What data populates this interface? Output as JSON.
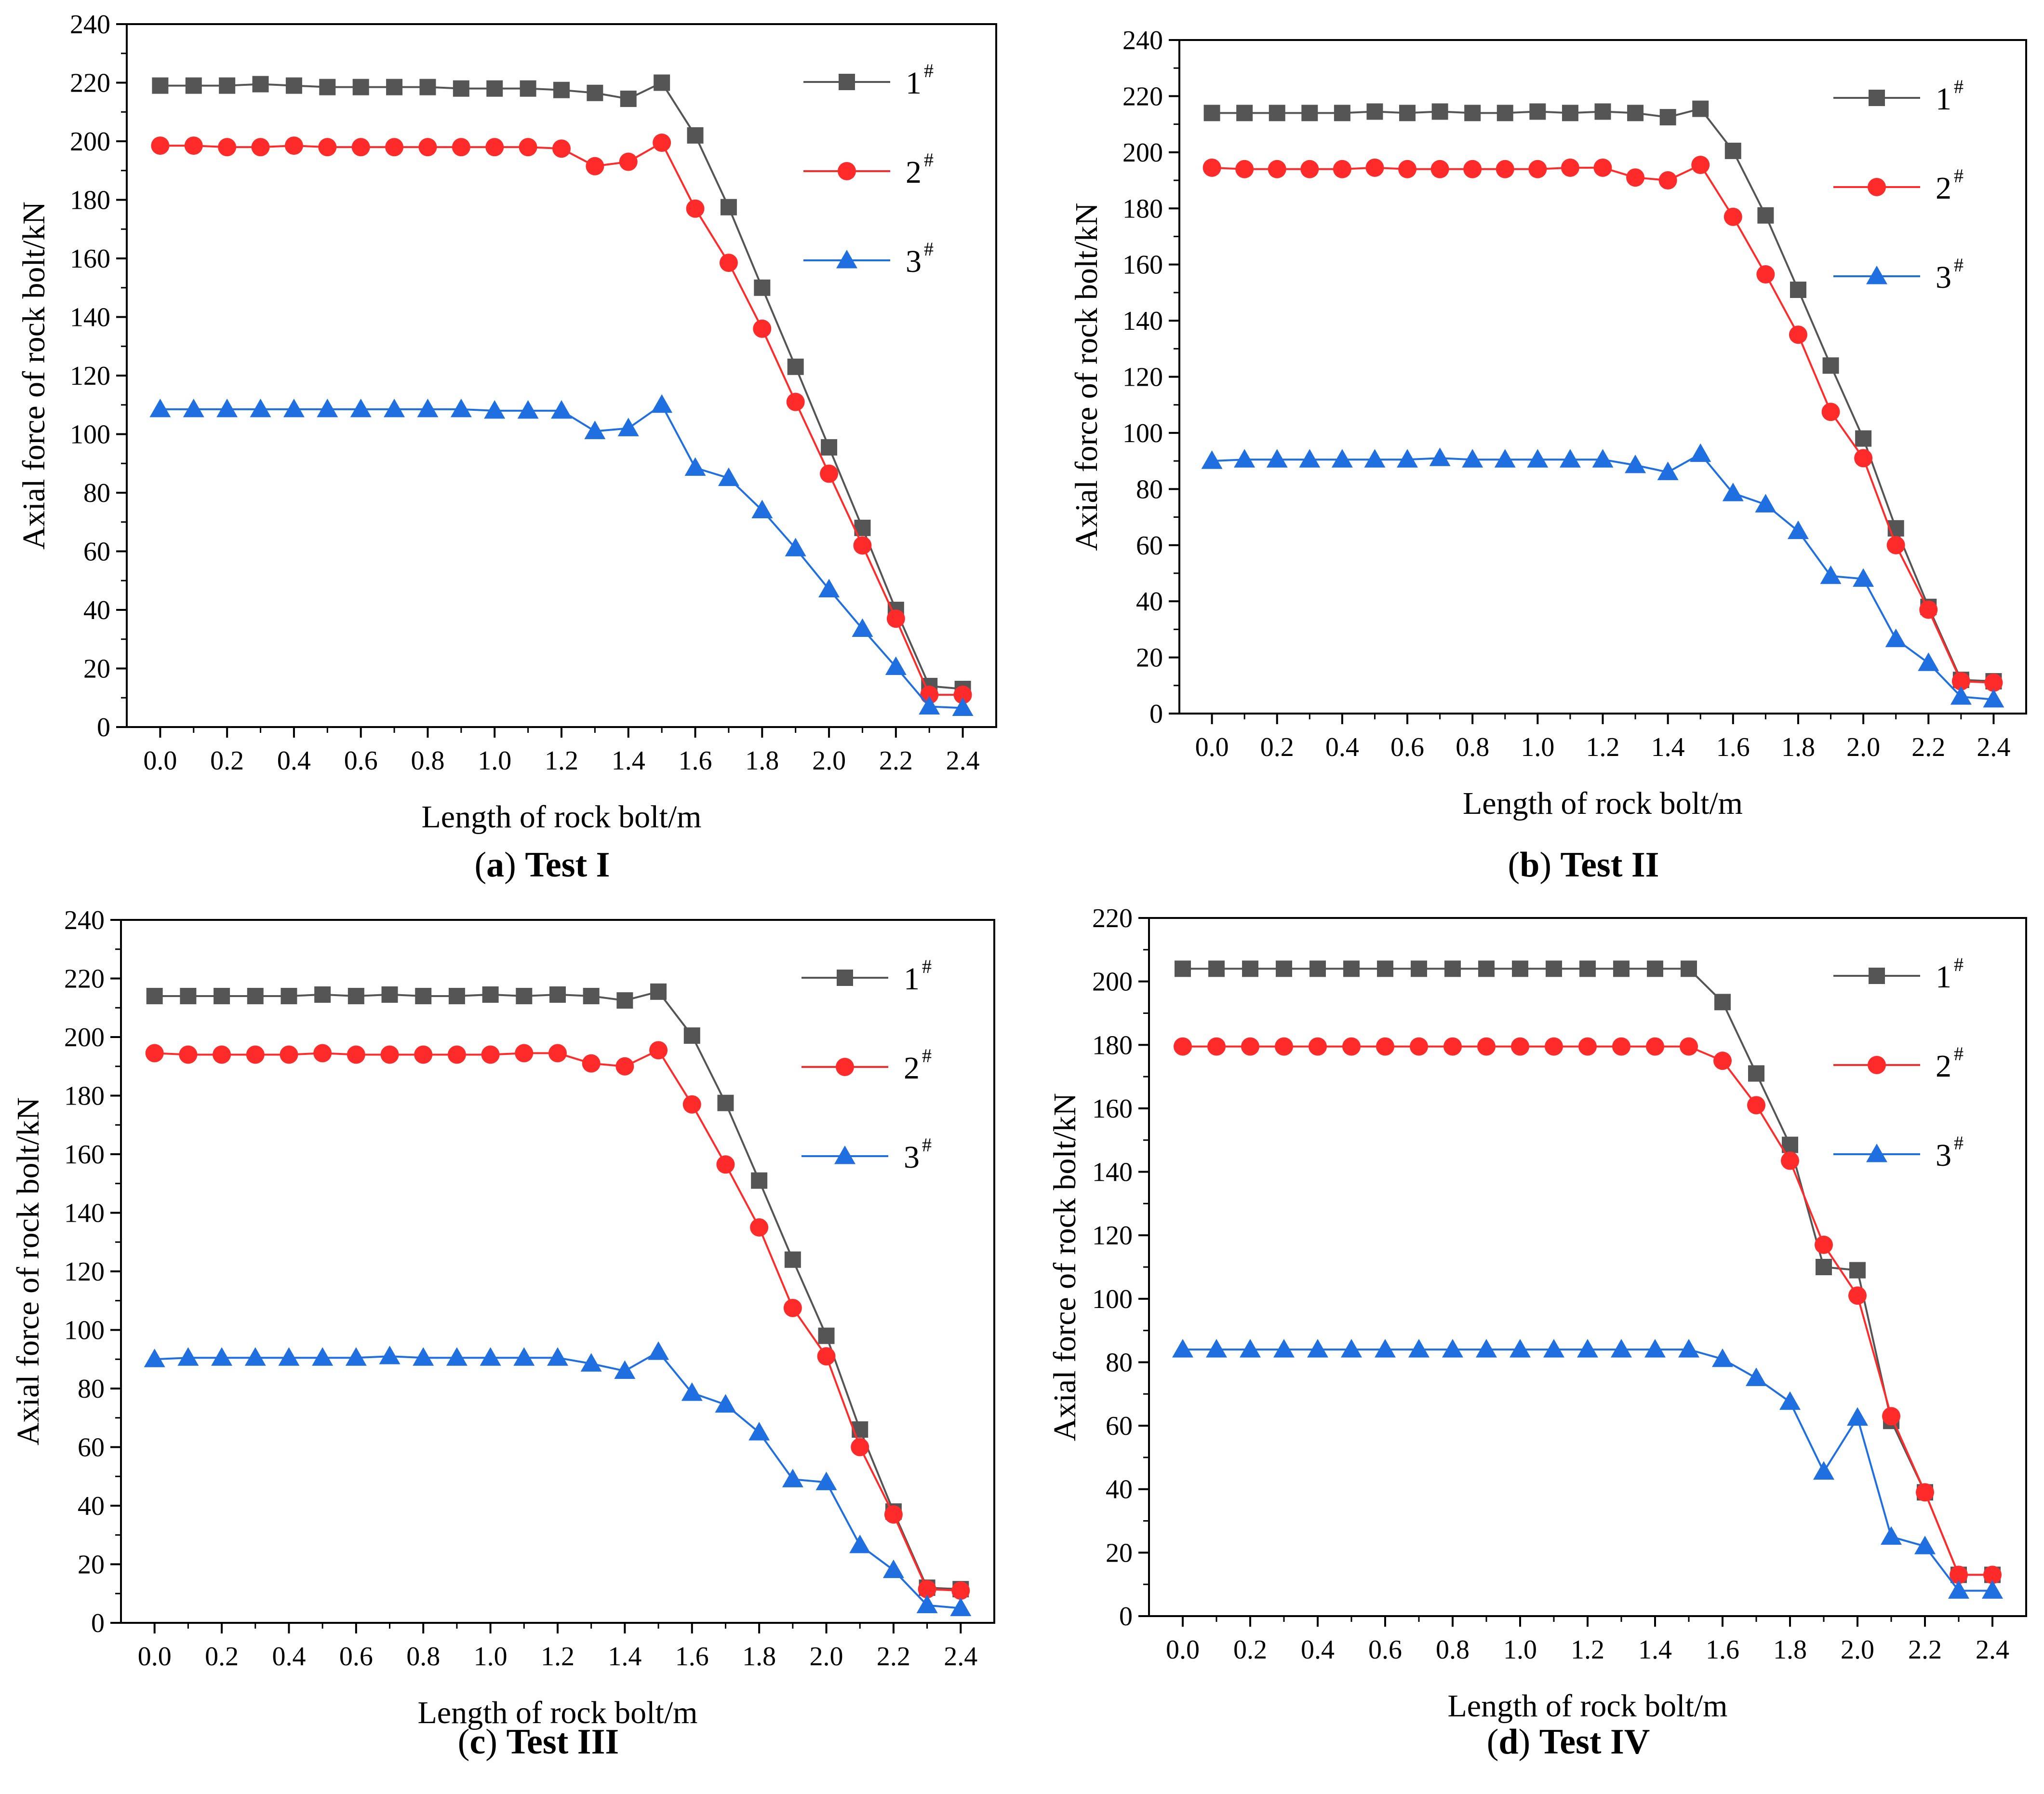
{
  "chart_data": [
    {
      "type": "line",
      "panel_letter": "a",
      "caption_title": "Test I",
      "xlabel": "Length of rock bolt/m",
      "ylabel": "Axial force of rock bolt/kN",
      "xlim": [
        -0.1,
        2.5
      ],
      "ylim": [
        0,
        240
      ],
      "xticks": [
        "0.0",
        "0.2",
        "0.4",
        "0.6",
        "0.8",
        "1.0",
        "1.2",
        "1.4",
        "1.6",
        "1.8",
        "2.0",
        "2.2",
        "2.4"
      ],
      "yticks": [
        "0",
        "20",
        "40",
        "60",
        "80",
        "100",
        "120",
        "140",
        "160",
        "180",
        "200",
        "220",
        "240"
      ],
      "legend_position": "top-right",
      "x": [
        0.0,
        0.1,
        0.2,
        0.3,
        0.4,
        0.5,
        0.6,
        0.7,
        0.8,
        0.9,
        1.0,
        1.1,
        1.2,
        1.3,
        1.4,
        1.5,
        1.6,
        1.7,
        1.8,
        1.9,
        2.0,
        2.1,
        2.2,
        2.3,
        2.4
      ],
      "series": [
        {
          "name": "1",
          "sup": "#",
          "color": "#555555",
          "marker": "square",
          "values": [
            219,
            219,
            219,
            219.5,
            219,
            218.5,
            218.5,
            218.5,
            218.5,
            218,
            218,
            218,
            217.5,
            216.5,
            214.5,
            220,
            202,
            177.5,
            150,
            123,
            95.5,
            68,
            40,
            14,
            13
          ]
        },
        {
          "name": "2",
          "sup": "#",
          "color": "#ff2a2a",
          "marker": "circle",
          "values": [
            198.5,
            198.5,
            198,
            198,
            198.5,
            198,
            198,
            198,
            198,
            198,
            198,
            198,
            197.5,
            191.5,
            193,
            199.5,
            177,
            158.5,
            136,
            111,
            86.5,
            62,
            37,
            11,
            11
          ]
        },
        {
          "name": "3",
          "sup": "#",
          "color": "#1f6fe0",
          "marker": "triangle",
          "values": [
            108.5,
            108.5,
            108.5,
            108.5,
            108.5,
            108.5,
            108.5,
            108.5,
            108.5,
            108.5,
            108,
            108,
            108,
            101,
            102,
            110,
            88.5,
            85,
            74,
            61,
            47,
            33.5,
            20.5,
            7,
            6.5
          ]
        }
      ]
    },
    {
      "type": "line",
      "panel_letter": "b",
      "caption_title": "Test II",
      "xlabel": "Length of rock bolt/m",
      "ylabel": "Axial force of rock bolt/kN",
      "xlim": [
        -0.1,
        2.5
      ],
      "ylim": [
        0,
        240
      ],
      "xticks": [
        "0.0",
        "0.2",
        "0.4",
        "0.6",
        "0.8",
        "1.0",
        "1.2",
        "1.4",
        "1.6",
        "1.8",
        "2.0",
        "2.2",
        "2.4"
      ],
      "yticks": [
        "0",
        "20",
        "40",
        "60",
        "80",
        "100",
        "120",
        "140",
        "160",
        "180",
        "200",
        "220",
        "240"
      ],
      "legend_position": "top-right",
      "x": [
        0.0,
        0.1,
        0.2,
        0.3,
        0.4,
        0.5,
        0.6,
        0.7,
        0.8,
        0.9,
        1.0,
        1.1,
        1.2,
        1.3,
        1.4,
        1.5,
        1.6,
        1.7,
        1.8,
        1.9,
        2.0,
        2.1,
        2.2,
        2.3,
        2.4
      ],
      "series": [
        {
          "name": "1",
          "sup": "#",
          "color": "#555555",
          "marker": "square",
          "values": [
            214,
            214,
            214,
            214,
            214,
            214.5,
            214,
            214.5,
            214,
            214,
            214.5,
            214,
            214.5,
            214,
            212.5,
            215.5,
            200.5,
            177.5,
            151,
            124,
            98,
            66,
            38,
            12,
            11.5
          ]
        },
        {
          "name": "2",
          "sup": "#",
          "color": "#ff2a2a",
          "marker": "circle",
          "values": [
            194.5,
            194,
            194,
            194,
            194,
            194.5,
            194,
            194,
            194,
            194,
            194,
            194.5,
            194.5,
            191,
            190,
            195.5,
            177,
            156.5,
            135,
            107.5,
            91,
            60,
            37,
            11.5,
            11
          ]
        },
        {
          "name": "3",
          "sup": "#",
          "color": "#1f6fe0",
          "marker": "triangle",
          "values": [
            90,
            90.5,
            90.5,
            90.5,
            90.5,
            90.5,
            90.5,
            91,
            90.5,
            90.5,
            90.5,
            90.5,
            90.5,
            88.5,
            86,
            92.5,
            78.5,
            74.5,
            65,
            49,
            48,
            26.5,
            18,
            6,
            5
          ]
        }
      ]
    },
    {
      "type": "line",
      "panel_letter": "c",
      "caption_title": "Test III",
      "xlabel": "Length of rock bolt/m",
      "ylabel": "Axial force of rock bolt/kN",
      "xlim": [
        -0.1,
        2.5
      ],
      "ylim": [
        0,
        240
      ],
      "xticks": [
        "0.0",
        "0.2",
        "0.4",
        "0.6",
        "0.8",
        "1.0",
        "1.2",
        "1.4",
        "1.6",
        "1.8",
        "2.0",
        "2.2",
        "2.4"
      ],
      "yticks": [
        "0",
        "20",
        "40",
        "60",
        "80",
        "100",
        "120",
        "140",
        "160",
        "180",
        "200",
        "220",
        "240"
      ],
      "legend_position": "top-right",
      "x": [
        0.0,
        0.1,
        0.2,
        0.3,
        0.4,
        0.5,
        0.6,
        0.7,
        0.8,
        0.9,
        1.0,
        1.1,
        1.2,
        1.3,
        1.4,
        1.5,
        1.6,
        1.7,
        1.8,
        1.9,
        2.0,
        2.1,
        2.2,
        2.3,
        2.4
      ],
      "series": [
        {
          "name": "1",
          "sup": "#",
          "color": "#555555",
          "marker": "square",
          "values": [
            214,
            214,
            214,
            214,
            214,
            214.5,
            214,
            214.5,
            214,
            214,
            214.5,
            214,
            214.5,
            214,
            212.5,
            215.5,
            200.5,
            177.5,
            151,
            124,
            98,
            66,
            38,
            12,
            11.5
          ]
        },
        {
          "name": "2",
          "sup": "#",
          "color": "#ff2a2a",
          "marker": "circle",
          "values": [
            194.5,
            194,
            194,
            194,
            194,
            194.5,
            194,
            194,
            194,
            194,
            194,
            194.5,
            194.5,
            191,
            190,
            195.5,
            177,
            156.5,
            135,
            107.5,
            91,
            60,
            37,
            11.5,
            11
          ]
        },
        {
          "name": "3",
          "sup": "#",
          "color": "#1f6fe0",
          "marker": "triangle",
          "values": [
            90,
            90.5,
            90.5,
            90.5,
            90.5,
            90.5,
            90.5,
            91,
            90.5,
            90.5,
            90.5,
            90.5,
            90.5,
            88.5,
            86,
            92.5,
            78.5,
            74.5,
            65,
            49,
            48,
            26.5,
            18,
            6,
            5
          ]
        }
      ]
    },
    {
      "type": "line",
      "panel_letter": "d",
      "caption_title": "Test IV",
      "xlabel": "Length of rock bolt/m",
      "ylabel": "Axial force of rock bolt/kN",
      "xlim": [
        -0.1,
        2.5
      ],
      "ylim": [
        0,
        220
      ],
      "xticks": [
        "0.0",
        "0.2",
        "0.4",
        "0.6",
        "0.8",
        "1.0",
        "1.2",
        "1.4",
        "1.6",
        "1.8",
        "2.0",
        "2.2",
        "2.4"
      ],
      "yticks": [
        "0",
        "20",
        "40",
        "60",
        "80",
        "100",
        "120",
        "140",
        "160",
        "180",
        "200",
        "220"
      ],
      "legend_position": "top-right",
      "x": [
        0.0,
        0.1,
        0.2,
        0.3,
        0.4,
        0.5,
        0.6,
        0.7,
        0.8,
        0.9,
        1.0,
        1.1,
        1.2,
        1.3,
        1.4,
        1.5,
        1.6,
        1.7,
        1.8,
        1.9,
        2.0,
        2.1,
        2.2,
        2.3,
        2.4
      ],
      "series": [
        {
          "name": "1",
          "sup": "#",
          "color": "#555555",
          "marker": "square",
          "values": [
            204,
            204,
            204,
            204,
            204,
            204,
            204,
            204,
            204,
            204,
            204,
            204,
            204,
            204,
            204,
            204,
            193.5,
            171,
            148.5,
            110,
            109,
            61.5,
            39,
            13,
            13
          ]
        },
        {
          "name": "2",
          "sup": "#",
          "color": "#ff2a2a",
          "marker": "circle",
          "values": [
            179.5,
            179.5,
            179.5,
            179.5,
            179.5,
            179.5,
            179.5,
            179.5,
            179.5,
            179.5,
            179.5,
            179.5,
            179.5,
            179.5,
            179.5,
            179.5,
            175,
            161,
            143.5,
            117,
            101,
            63,
            39,
            13,
            13
          ]
        },
        {
          "name": "3",
          "sup": "#",
          "color": "#1f6fe0",
          "marker": "triangle",
          "values": [
            84,
            84,
            84,
            84,
            84,
            84,
            84,
            84,
            84,
            84,
            84,
            84,
            84,
            84,
            84,
            84,
            81,
            75,
            67.5,
            45.5,
            62.5,
            25,
            22,
            8,
            8
          ]
        }
      ]
    }
  ]
}
